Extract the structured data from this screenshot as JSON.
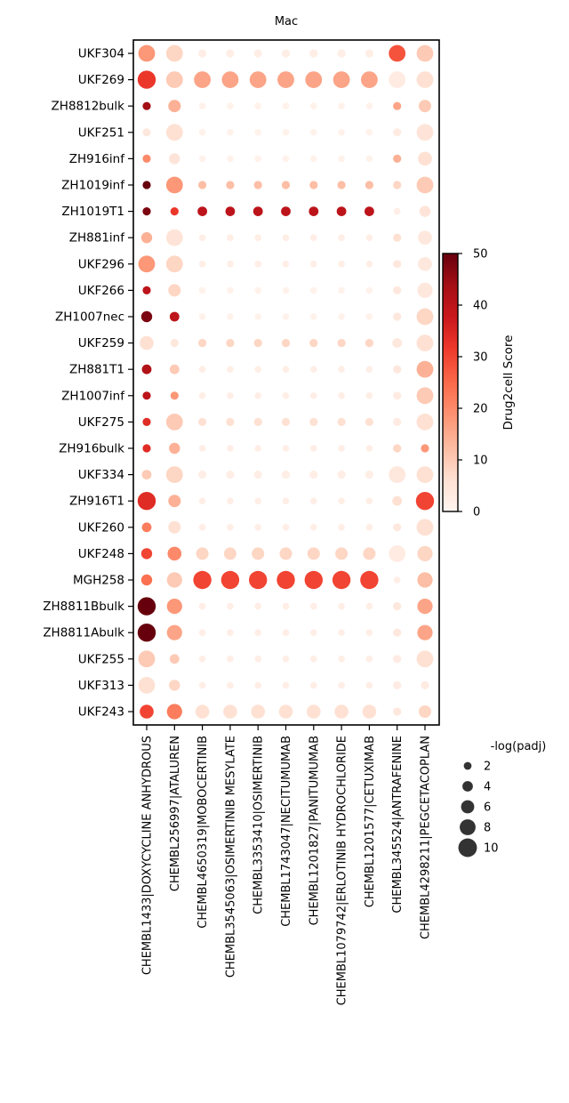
{
  "chart_data": {
    "type": "dotplot",
    "title": "Mac",
    "rows": [
      "UKF304",
      "UKF269",
      "ZH8812bulk",
      "UKF251",
      "ZH916inf",
      "ZH1019inf",
      "ZH1019T1",
      "ZH881inf",
      "UKF296",
      "UKF266",
      "ZH1007nec",
      "UKF259",
      "ZH881T1",
      "ZH1007inf",
      "UKF275",
      "ZH916bulk",
      "UKF334",
      "ZH916T1",
      "UKF260",
      "UKF248",
      "MGH258",
      "ZH8811Bbulk",
      "ZH8811Abulk",
      "UKF255",
      "UKF313",
      "UKF243"
    ],
    "columns": [
      "CHEMBL1433|DOXYCYCLINE ANHYDROUS",
      "CHEMBL256997|ATALUREN",
      "CHEMBL4650319|MOBOCERTINIB",
      "CHEMBL3545063|OSIMERTINIB MESYLATE",
      "CHEMBL3353410|OSIMERTINIB",
      "CHEMBL1743047|NECITUMUMAB",
      "CHEMBL1201827|PANITUMUMAB",
      "CHEMBL1079742|ERLOTINIB HYDROCHLORIDE",
      "CHEMBL1201577|CETUXIMAB",
      "CHEMBL345524|ANTRAFENINE",
      "CHEMBL4298211|PEGCETACOPLAN"
    ],
    "score": [
      [
        18,
        8,
        2,
        2,
        2,
        2,
        2,
        2,
        2,
        28,
        10
      ],
      [
        32,
        10,
        16,
        16,
        16,
        16,
        16,
        16,
        16,
        3,
        6
      ],
      [
        44,
        14,
        1,
        1,
        1,
        1,
        1,
        1,
        1,
        16,
        10
      ],
      [
        4,
        6,
        1,
        1,
        1,
        1,
        1,
        1,
        1,
        3,
        5
      ],
      [
        20,
        5,
        1,
        1,
        1,
        1,
        1,
        1,
        1,
        14,
        6
      ],
      [
        50,
        18,
        12,
        12,
        12,
        12,
        12,
        12,
        12,
        8,
        10
      ],
      [
        48,
        32,
        40,
        40,
        40,
        40,
        40,
        40,
        40,
        2,
        5
      ],
      [
        14,
        5,
        2,
        2,
        2,
        2,
        2,
        2,
        2,
        6,
        4
      ],
      [
        18,
        8,
        2,
        2,
        2,
        2,
        2,
        2,
        2,
        4,
        4
      ],
      [
        40,
        8,
        1,
        1,
        1,
        1,
        1,
        1,
        1,
        4,
        4
      ],
      [
        48,
        40,
        1,
        1,
        1,
        1,
        1,
        1,
        1,
        4,
        8
      ],
      [
        6,
        4,
        8,
        8,
        8,
        8,
        8,
        8,
        8,
        4,
        6
      ],
      [
        42,
        10,
        2,
        2,
        2,
        2,
        2,
        2,
        2,
        4,
        14
      ],
      [
        40,
        18,
        2,
        2,
        2,
        2,
        2,
        2,
        2,
        3,
        10
      ],
      [
        34,
        10,
        6,
        6,
        6,
        6,
        6,
        6,
        6,
        3,
        6
      ],
      [
        34,
        14,
        2,
        2,
        2,
        2,
        2,
        2,
        2,
        8,
        18
      ],
      [
        10,
        8,
        2,
        2,
        2,
        2,
        2,
        2,
        2,
        4,
        6
      ],
      [
        34,
        14,
        2,
        2,
        2,
        2,
        2,
        2,
        2,
        6,
        30
      ],
      [
        22,
        6,
        2,
        2,
        2,
        2,
        2,
        2,
        2,
        4,
        6
      ],
      [
        30,
        20,
        8,
        8,
        8,
        8,
        8,
        8,
        8,
        3,
        8
      ],
      [
        24,
        10,
        30,
        30,
        30,
        30,
        30,
        30,
        30,
        2,
        12
      ],
      [
        50,
        18,
        2,
        2,
        2,
        2,
        2,
        2,
        2,
        4,
        16
      ],
      [
        50,
        16,
        2,
        2,
        2,
        2,
        2,
        2,
        2,
        4,
        16
      ],
      [
        10,
        10,
        2,
        2,
        2,
        2,
        2,
        2,
        2,
        3,
        6
      ],
      [
        6,
        8,
        2,
        2,
        2,
        2,
        2,
        2,
        2,
        3,
        3
      ],
      [
        30,
        22,
        6,
        6,
        6,
        6,
        6,
        6,
        6,
        4,
        8
      ]
    ],
    "neglogp": [
      [
        8,
        8,
        2,
        2,
        2,
        2,
        2,
        2,
        2,
        8,
        8
      ],
      [
        9,
        8,
        8,
        8,
        8,
        8,
        8,
        8,
        8,
        8,
        8
      ],
      [
        2,
        5,
        1,
        1,
        1,
        1,
        1,
        1,
        1,
        2,
        5
      ],
      [
        2,
        8,
        1,
        1,
        1,
        1,
        1,
        1,
        1,
        2,
        8
      ],
      [
        2,
        4,
        1,
        1,
        1,
        1,
        1,
        1,
        1,
        2,
        6
      ],
      [
        2,
        8,
        2,
        2,
        2,
        2,
        2,
        2,
        2,
        2,
        8
      ],
      [
        2,
        2,
        3,
        3,
        3,
        3,
        3,
        3,
        3,
        1,
        4
      ],
      [
        4,
        8,
        1,
        1,
        1,
        1,
        1,
        1,
        1,
        2,
        6
      ],
      [
        8,
        8,
        1,
        1,
        1,
        1,
        1,
        1,
        1,
        2,
        6
      ],
      [
        2,
        5,
        1,
        1,
        1,
        1,
        1,
        1,
        1,
        2,
        7
      ],
      [
        4,
        3,
        1,
        1,
        1,
        1,
        1,
        1,
        1,
        2,
        8
      ],
      [
        6,
        2,
        2,
        2,
        2,
        2,
        2,
        2,
        2,
        3,
        8
      ],
      [
        3,
        3,
        1,
        1,
        1,
        1,
        1,
        1,
        1,
        2,
        8
      ],
      [
        2,
        2,
        1,
        1,
        1,
        1,
        1,
        1,
        1,
        2,
        8
      ],
      [
        2,
        8,
        2,
        2,
        2,
        2,
        2,
        2,
        2,
        2,
        8
      ],
      [
        2,
        4,
        1,
        1,
        1,
        1,
        1,
        1,
        1,
        2,
        2
      ],
      [
        3,
        8,
        2,
        2,
        2,
        2,
        2,
        2,
        2,
        8,
        8
      ],
      [
        9,
        5,
        1,
        1,
        1,
        1,
        1,
        1,
        1,
        3,
        9
      ],
      [
        3,
        5,
        1,
        1,
        1,
        1,
        1,
        1,
        1,
        2,
        8
      ],
      [
        4,
        6,
        5,
        5,
        5,
        5,
        5,
        5,
        5,
        8,
        7
      ],
      [
        4,
        7,
        9,
        9,
        9,
        9,
        9,
        9,
        9,
        1,
        7
      ],
      [
        9,
        7,
        1,
        1,
        1,
        1,
        1,
        1,
        1,
        2,
        7
      ],
      [
        9,
        7,
        1,
        1,
        1,
        1,
        1,
        1,
        1,
        2,
        7
      ],
      [
        8,
        3,
        1,
        1,
        1,
        1,
        1,
        1,
        1,
        2,
        8
      ],
      [
        8,
        4,
        1,
        1,
        1,
        1,
        1,
        1,
        1,
        2,
        2
      ],
      [
        6,
        7,
        6,
        6,
        6,
        6,
        6,
        6,
        6,
        2,
        5
      ]
    ],
    "colorbar": {
      "label": "Drug2cell Score",
      "min": 0,
      "max": 50,
      "ticks": [
        0,
        10,
        20,
        30,
        40,
        50
      ]
    },
    "size_legend": {
      "title": "-log(padj)",
      "values": [
        2,
        4,
        6,
        8,
        10
      ]
    },
    "colormap": [
      "#fff5f0",
      "#fee0d2",
      "#fcbba1",
      "#fc9272",
      "#fb6a4a",
      "#ef3b2c",
      "#cb181d",
      "#a50f15",
      "#67000d"
    ]
  }
}
